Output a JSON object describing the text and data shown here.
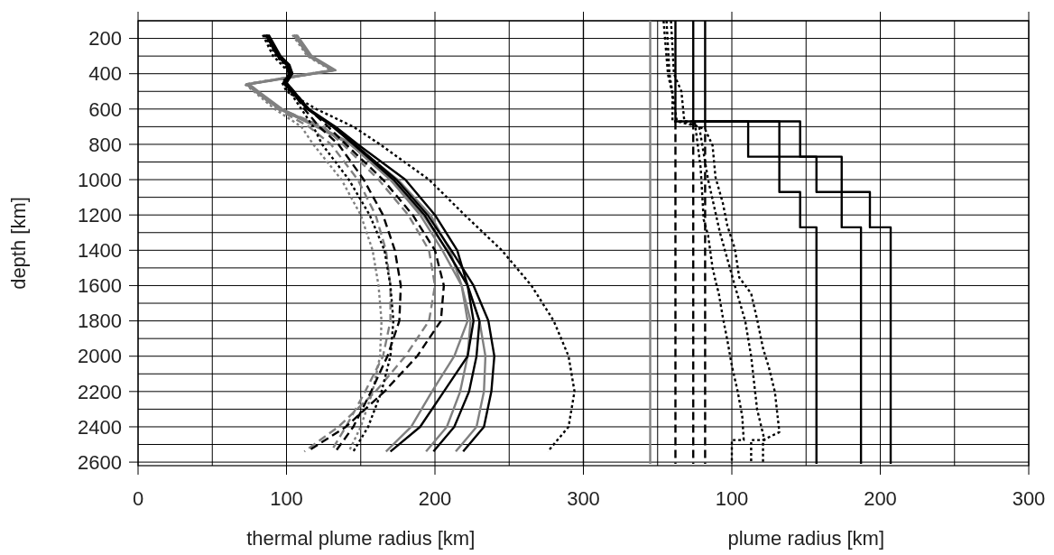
{
  "chart_data": [
    {
      "type": "line",
      "xlabel": "thermal plume radius [km]",
      "ylabel": "depth [km]",
      "xlim": [
        0,
        300
      ],
      "xticks": [
        0,
        {
          "value": 50,
          "label": null
        },
        100,
        {
          "value": 150,
          "label": null
        },
        200,
        {
          "value": 250,
          "label": null
        },
        300
      ],
      "ylim": [
        2620,
        100
      ],
      "yticks": [
        {
          "value": 100,
          "label": null
        },
        200,
        {
          "value": 300,
          "label": null
        },
        400,
        {
          "value": 500,
          "label": null
        },
        600,
        {
          "value": 700,
          "label": null
        },
        800,
        {
          "value": 900,
          "label": null
        },
        1000,
        {
          "value": 1100,
          "label": null
        },
        1200,
        {
          "value": 1300,
          "label": null
        },
        1400,
        {
          "value": 1500,
          "label": null
        },
        1600,
        {
          "value": 1700,
          "label": null
        },
        1800,
        {
          "value": 1900,
          "label": null
        },
        2000,
        {
          "value": 2100,
          "label": null
        },
        2200,
        {
          "value": 2300,
          "label": null
        },
        2400,
        {
          "value": 2500,
          "label": null
        },
        2600
      ],
      "grid": true,
      "series": [
        {
          "color": "#808080",
          "line_style": "dashed",
          "x": [
            106,
            116,
            132,
            74,
            80,
            96,
            125,
            138,
            162,
            182,
            196,
            200,
            196,
            180,
            160,
            135,
            112
          ],
          "values": [
            180,
            300,
            380,
            460,
            500,
            600,
            700,
            800,
            1000,
            1200,
            1400,
            1600,
            1800,
            2000,
            2200,
            2400,
            2540
          ]
        },
        {
          "color": "#808080",
          "line_style": "dashed",
          "x": [
            105,
            115,
            131,
            73,
            79,
            94,
            115,
            130,
            148,
            160,
            167,
            170,
            170,
            165,
            153,
            140,
            130
          ],
          "values": [
            180,
            300,
            380,
            460,
            500,
            600,
            700,
            800,
            1000,
            1200,
            1400,
            1600,
            1800,
            2000,
            2200,
            2400,
            2540
          ]
        },
        {
          "color": "#808080",
          "line_style": "dotted",
          "x": [
            104,
            114,
            130,
            72,
            78,
            92,
            110,
            118,
            137,
            150,
            158,
            162,
            164,
            163,
            158,
            150,
            142
          ],
          "values": [
            180,
            300,
            380,
            460,
            500,
            600,
            700,
            800,
            1000,
            1200,
            1400,
            1600,
            1800,
            2000,
            2200,
            2400,
            2540
          ]
        },
        {
          "color": "#808080",
          "line_style": "solid",
          "x": [
            107,
            117,
            133,
            75,
            81,
            97,
            122,
            145,
            175,
            197,
            210,
            218,
            222,
            213,
            198,
            184,
            167
          ],
          "values": [
            180,
            300,
            380,
            460,
            500,
            600,
            700,
            800,
            1000,
            1200,
            1400,
            1600,
            1800,
            2000,
            2200,
            2400,
            2540
          ]
        },
        {
          "color": "#808080",
          "line_style": "solid",
          "x": [
            106,
            116,
            132,
            74,
            80,
            96,
            120,
            143,
            170,
            190,
            205,
            218,
            224,
            222,
            217,
            208,
            194
          ],
          "values": [
            180,
            300,
            380,
            460,
            500,
            600,
            700,
            800,
            1000,
            1200,
            1400,
            1600,
            1800,
            2000,
            2200,
            2400,
            2540
          ]
        },
        {
          "color": "#808080",
          "line_style": "solid",
          "x": [
            105,
            115,
            131,
            73,
            79,
            95,
            121,
            143,
            170,
            192,
            208,
            222,
            230,
            234,
            233,
            228,
            214
          ],
          "values": [
            180,
            300,
            380,
            460,
            500,
            600,
            700,
            800,
            1000,
            1200,
            1400,
            1600,
            1800,
            2000,
            2200,
            2400,
            2540
          ]
        },
        {
          "color": "#000000",
          "line_style": "dashed",
          "x": [
            87,
            95,
            101,
            104,
            100,
            105,
            115,
            128,
            140,
            165,
            185,
            200,
            206,
            204,
            188,
            166,
            140,
            114
          ],
          "values": [
            180,
            300,
            350,
            400,
            450,
            500,
            600,
            700,
            800,
            1000,
            1200,
            1400,
            1600,
            1800,
            2000,
            2200,
            2400,
            2540
          ]
        },
        {
          "color": "#000000",
          "line_style": "dashed",
          "x": [
            86,
            94,
            100,
            103,
            99,
            104,
            112,
            122,
            135,
            152,
            165,
            173,
            177,
            176,
            168,
            157,
            145,
            133
          ],
          "values": [
            180,
            300,
            350,
            400,
            450,
            500,
            600,
            700,
            800,
            1000,
            1200,
            1400,
            1600,
            1800,
            2000,
            2200,
            2400,
            2540
          ]
        },
        {
          "color": "#000000",
          "line_style": "dotted",
          "x": [
            85,
            93,
            99,
            102,
            98,
            102,
            110,
            118,
            124,
            142,
            156,
            166,
            170,
            172,
            170,
            164,
            155,
            145
          ],
          "values": [
            180,
            300,
            350,
            400,
            450,
            500,
            600,
            700,
            800,
            1000,
            1200,
            1400,
            1600,
            1800,
            2000,
            2200,
            2400,
            2540
          ]
        },
        {
          "color": "#000000",
          "line_style": "solid",
          "x": [
            88,
            96,
            102,
            104,
            100,
            105,
            115,
            133,
            148,
            180,
            200,
            215,
            222,
            226,
            222,
            206,
            190,
            170
          ],
          "values": [
            180,
            300,
            350,
            400,
            450,
            500,
            600,
            700,
            800,
            1000,
            1200,
            1400,
            1600,
            1800,
            2000,
            2200,
            2400,
            2540
          ]
        },
        {
          "color": "#000000",
          "line_style": "solid",
          "x": [
            87,
            95,
            101,
            103,
            99,
            104,
            114,
            131,
            145,
            172,
            193,
            208,
            222,
            230,
            228,
            223,
            213,
            199
          ],
          "values": [
            180,
            300,
            350,
            400,
            450,
            500,
            600,
            700,
            800,
            1000,
            1200,
            1400,
            1600,
            1800,
            2000,
            2200,
            2400,
            2540
          ]
        },
        {
          "color": "#000000",
          "line_style": "solid",
          "x": [
            86,
            94,
            100,
            102,
            98,
            103,
            114,
            132,
            146,
            174,
            195,
            211,
            226,
            236,
            240,
            238,
            233,
            219
          ],
          "values": [
            180,
            300,
            350,
            400,
            450,
            500,
            600,
            700,
            800,
            1000,
            1200,
            1400,
            1600,
            1800,
            2000,
            2200,
            2400,
            2540
          ]
        },
        {
          "color": "#000000",
          "line_style": "dotted",
          "x": [
            84,
            91,
            97,
            102,
            97,
            100,
            120,
            145,
            163,
            196,
            220,
            245,
            265,
            280,
            290,
            294,
            290,
            276
          ],
          "values": [
            180,
            300,
            350,
            400,
            450,
            500,
            600,
            700,
            800,
            1000,
            1200,
            1400,
            1600,
            1800,
            2000,
            2200,
            2400,
            2540
          ]
        }
      ]
    },
    {
      "type": "line",
      "xlabel": "plume radius [km]",
      "xlim": [
        0,
        300
      ],
      "xticks": [
        {
          "value": 0,
          "label": null
        },
        {
          "value": 50,
          "label": null
        },
        100,
        {
          "value": 150,
          "label": null
        },
        200,
        {
          "value": 250,
          "label": null
        },
        300
      ],
      "ylim": [
        2620,
        100
      ],
      "yticks": [
        {
          "value": 100,
          "label": null
        },
        200,
        {
          "value": 300,
          "label": null
        },
        400,
        {
          "value": 500,
          "label": null
        },
        600,
        {
          "value": 700,
          "label": null
        },
        800,
        {
          "value": 900,
          "label": null
        },
        1000,
        {
          "value": 1100,
          "label": null
        },
        1200,
        {
          "value": 1300,
          "label": null
        },
        1400,
        {
          "value": 1500,
          "label": null
        },
        1600,
        {
          "value": 1700,
          "label": null
        },
        1800,
        {
          "value": 1900,
          "label": null
        },
        2000,
        {
          "value": 2100,
          "label": null
        },
        2200,
        {
          "value": 2300,
          "label": null
        },
        2400,
        {
          "value": 2500,
          "label": null
        },
        2600
      ],
      "grid": true,
      "tick_labels": "x",
      "series": [
        {
          "color": "#808080",
          "line_style": "solid",
          "x": [
            45,
            45
          ],
          "values": [
            100,
            2610
          ]
        },
        {
          "color": "#000000",
          "line_style": "solid",
          "x": [
            62,
            62,
            111,
            111,
            132,
            132,
            146,
            146,
            157,
            157
          ],
          "values": [
            100,
            670,
            670,
            870,
            870,
            1070,
            1070,
            1270,
            1270,
            2610
          ]
        },
        {
          "color": "#000000",
          "line_style": "solid",
          "x": [
            74,
            74,
            132,
            132,
            157,
            157,
            174,
            174,
            187,
            187
          ],
          "values": [
            100,
            670,
            670,
            870,
            870,
            1070,
            1070,
            1270,
            1270,
            2610
          ]
        },
        {
          "color": "#000000",
          "line_style": "solid",
          "x": [
            82,
            82,
            146,
            146,
            174,
            174,
            193,
            193,
            207,
            207
          ],
          "values": [
            100,
            670,
            670,
            870,
            870,
            1070,
            1070,
            1270,
            1270,
            2610
          ]
        },
        {
          "color": "#000000",
          "line_style": "dashed",
          "x": [
            62,
            62
          ],
          "values": [
            670,
            2610
          ]
        },
        {
          "color": "#000000",
          "line_style": "dashed",
          "x": [
            74,
            74
          ],
          "values": [
            670,
            2610
          ]
        },
        {
          "color": "#000000",
          "line_style": "dashed",
          "x": [
            82,
            82
          ],
          "values": [
            670,
            2610
          ]
        },
        {
          "color": "#000000",
          "line_style": "dotted",
          "x": [
            54,
            57,
            60,
            60,
            75,
            79,
            81,
            84,
            87,
            90,
            91,
            94,
            97,
            100,
            104,
            107,
            108,
            100,
            100
          ],
          "values": [
            100,
            405,
            515,
            670,
            670,
            934,
            1225,
            1316,
            1499,
            1609,
            1635,
            1783,
            1911,
            2054,
            2202,
            2340,
            2475,
            2475,
            2610
          ]
        },
        {
          "color": "#000000",
          "line_style": "dotted",
          "x": [
            56,
            58,
            63,
            78,
            84,
            92,
            102,
            109,
            113,
            117,
            122,
            113,
            113
          ],
          "values": [
            100,
            400,
            670,
            700,
            1000,
            1300,
            1600,
            1800,
            2000,
            2300,
            2475,
            2475,
            2610
          ]
        },
        {
          "color": "#000000",
          "line_style": "dotted",
          "x": [
            59,
            61,
            66,
            68,
            82,
            87,
            89,
            94,
            97,
            102,
            105,
            113,
            117,
            121,
            125,
            129,
            132,
            121,
            121
          ],
          "values": [
            100,
            400,
            500,
            670,
            715,
            806,
            987,
            1135,
            1262,
            1390,
            1554,
            1645,
            1791,
            1955,
            2065,
            2202,
            2430,
            2475,
            2610
          ]
        }
      ]
    }
  ]
}
